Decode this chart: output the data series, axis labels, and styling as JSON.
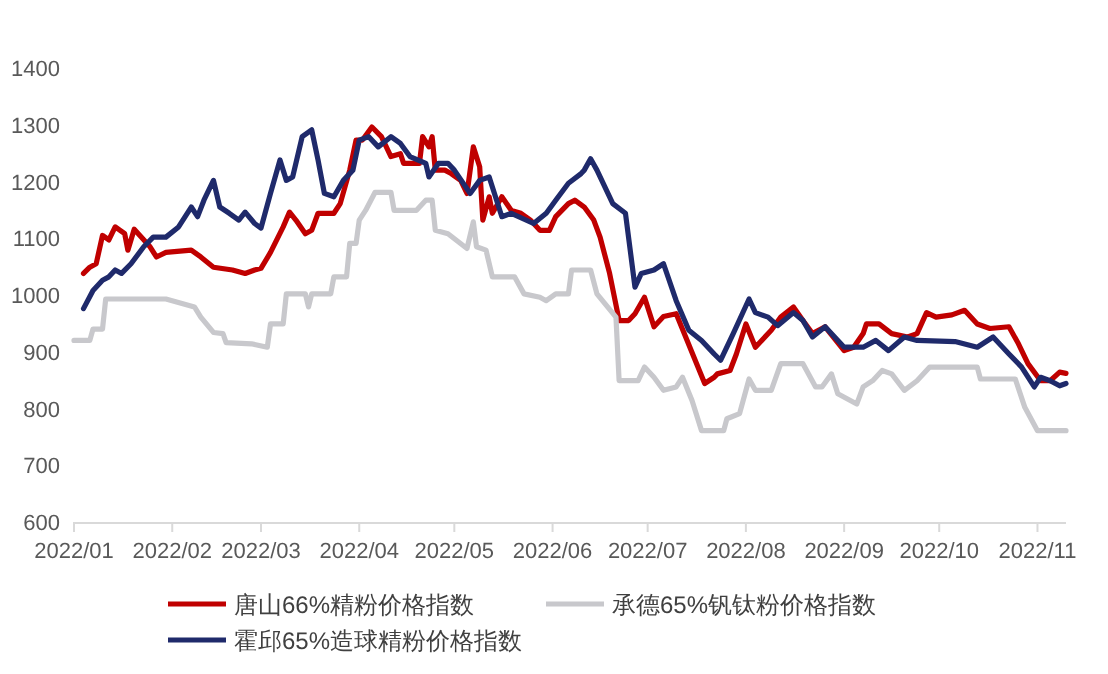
{
  "chart_data": {
    "type": "line",
    "xlim": [
      "2022-01-01",
      "2022-11-10"
    ],
    "xticks": [
      {
        "value": "2022-01-01",
        "label": "2022/01"
      },
      {
        "value": "2022-02-01",
        "label": "2022/02"
      },
      {
        "value": "2022-03-01",
        "label": "2022/03"
      },
      {
        "value": "2022-04-01",
        "label": "2022/04"
      },
      {
        "value": "2022-05-01",
        "label": "2022/05"
      },
      {
        "value": "2022-06-01",
        "label": "2022/06"
      },
      {
        "value": "2022-07-01",
        "label": "2022/07"
      },
      {
        "value": "2022-08-01",
        "label": "2022/08"
      },
      {
        "value": "2022-09-01",
        "label": "2022/09"
      },
      {
        "value": "2022-10-01",
        "label": "2022/10"
      },
      {
        "value": "2022-11-01",
        "label": "2022/11"
      }
    ],
    "ylim": [
      600,
      1400
    ],
    "yticks": [
      600,
      700,
      800,
      900,
      1000,
      1100,
      1200,
      1300,
      1400
    ],
    "grid": false,
    "legend": "bottom",
    "marker": "none",
    "line_style": "solid",
    "series": [
      {
        "name": "唐山66%精粉价格指数",
        "color": "#c00000",
        "x": [
          "2022-01-04",
          "2022-01-06",
          "2022-01-08",
          "2022-01-10",
          "2022-01-12",
          "2022-01-14",
          "2022-01-17",
          "2022-01-18",
          "2022-01-20",
          "2022-01-25",
          "2022-01-27",
          "2022-01-30",
          "2022-02-07",
          "2022-02-10",
          "2022-02-14",
          "2022-02-20",
          "2022-02-24",
          "2022-02-27",
          "2022-03-01",
          "2022-03-04",
          "2022-03-08",
          "2022-03-10",
          "2022-03-12",
          "2022-03-15",
          "2022-03-17",
          "2022-03-19",
          "2022-03-24",
          "2022-03-26",
          "2022-03-29",
          "2022-03-31",
          "2022-04-02",
          "2022-04-05",
          "2022-04-08",
          "2022-04-11",
          "2022-04-14",
          "2022-04-15",
          "2022-04-18",
          "2022-04-20",
          "2022-04-21",
          "2022-04-23",
          "2022-04-24",
          "2022-04-25",
          "2022-04-28",
          "2022-04-30",
          "2022-05-03",
          "2022-05-05",
          "2022-05-07",
          "2022-05-09",
          "2022-05-10",
          "2022-05-12",
          "2022-05-13",
          "2022-05-16",
          "2022-05-19",
          "2022-05-22",
          "2022-05-25",
          "2022-05-28",
          "2022-05-31",
          "2022-06-02",
          "2022-06-06",
          "2022-06-08",
          "2022-06-11",
          "2022-06-14",
          "2022-06-16",
          "2022-06-19",
          "2022-06-22",
          "2022-06-25",
          "2022-06-27",
          "2022-06-30",
          "2022-07-03",
          "2022-07-06",
          "2022-07-10",
          "2022-07-13",
          "2022-07-16",
          "2022-07-19",
          "2022-07-22",
          "2022-07-23",
          "2022-07-27",
          "2022-07-29",
          "2022-08-01",
          "2022-08-04",
          "2022-08-09",
          "2022-08-12",
          "2022-08-16",
          "2022-08-19",
          "2022-08-22",
          "2022-08-26",
          "2022-09-01",
          "2022-09-04",
          "2022-09-07",
          "2022-09-08",
          "2022-09-12",
          "2022-09-16",
          "2022-09-21",
          "2022-09-24",
          "2022-09-27",
          "2022-09-30",
          "2022-10-05",
          "2022-10-09",
          "2022-10-13",
          "2022-10-17",
          "2022-10-23",
          "2022-10-26",
          "2022-10-29",
          "2022-11-02",
          "2022-11-05",
          "2022-11-08",
          "2022-11-10"
        ],
        "values": [
          1038,
          1049,
          1055,
          1105,
          1097,
          1120,
          1108,
          1079,
          1116,
          1085,
          1067,
          1075,
          1079,
          1067,
          1049,
          1044,
          1038,
          1044,
          1047,
          1075,
          1120,
          1146,
          1132,
          1108,
          1114,
          1144,
          1144,
          1161,
          1220,
          1273,
          1273,
          1296,
          1279,
          1244,
          1249,
          1232,
          1232,
          1232,
          1279,
          1261,
          1279,
          1220,
          1220,
          1214,
          1202,
          1179,
          1261,
          1226,
          1132,
          1173,
          1144,
          1173,
          1149,
          1144,
          1132,
          1114,
          1114,
          1138,
          1161,
          1167,
          1155,
          1132,
          1102,
          1038,
          955,
          955,
          967,
          996,
          944,
          962,
          967,
          926,
          885,
          844,
          855,
          861,
          867,
          896,
          949,
          908,
          938,
          961,
          979,
          955,
          932,
          944,
          902,
          908,
          932,
          949,
          949,
          932,
          926,
          932,
          969,
          961,
          965,
          973,
          949,
          941,
          944,
          914,
          879,
          849,
          849,
          864,
          862
        ]
      },
      {
        "name": "承德65%钒钛粉价格指数",
        "color": "#c8c8cc",
        "x": [
          "2022-01-01",
          "2022-01-06",
          "2022-01-07",
          "2022-01-10",
          "2022-01-11",
          "2022-01-30",
          "2022-02-08",
          "2022-02-10",
          "2022-02-14",
          "2022-02-17",
          "2022-02-18",
          "2022-02-26",
          "2022-03-03",
          "2022-03-04",
          "2022-03-08",
          "2022-03-09",
          "2022-03-15",
          "2022-03-16",
          "2022-03-17",
          "2022-03-23",
          "2022-03-24",
          "2022-03-28",
          "2022-03-29",
          "2022-03-31",
          "2022-04-01",
          "2022-04-03",
          "2022-04-06",
          "2022-04-11",
          "2022-04-12",
          "2022-04-19",
          "2022-04-22",
          "2022-04-24",
          "2022-04-25",
          "2022-04-29",
          "2022-05-05",
          "2022-05-07",
          "2022-05-08",
          "2022-05-11",
          "2022-05-13",
          "2022-05-20",
          "2022-05-23",
          "2022-05-28",
          "2022-05-30",
          "2022-06-02",
          "2022-06-06",
          "2022-06-07",
          "2022-06-13",
          "2022-06-15",
          "2022-06-21",
          "2022-06-22",
          "2022-06-28",
          "2022-06-30",
          "2022-07-03",
          "2022-07-06",
          "2022-07-10",
          "2022-07-12",
          "2022-07-15",
          "2022-07-18",
          "2022-07-25",
          "2022-07-26",
          "2022-07-30",
          "2022-08-02",
          "2022-08-04",
          "2022-08-09",
          "2022-08-12",
          "2022-08-19",
          "2022-08-23",
          "2022-08-25",
          "2022-08-28",
          "2022-08-30",
          "2022-09-05",
          "2022-09-07",
          "2022-09-10",
          "2022-09-13",
          "2022-09-16",
          "2022-09-20",
          "2022-09-24",
          "2022-09-28",
          "2022-10-13",
          "2022-10-14",
          "2022-10-25",
          "2022-10-28",
          "2022-11-01",
          "2022-11-10"
        ],
        "values": [
          920,
          920,
          940,
          940,
          993,
          993,
          979,
          961,
          934,
          932,
          916,
          914,
          908,
          949,
          949,
          1002,
          1002,
          979,
          1002,
          1002,
          1032,
          1032,
          1091,
          1091,
          1132,
          1149,
          1181,
          1181,
          1149,
          1149,
          1167,
          1167,
          1114,
          1108,
          1082,
          1129,
          1085,
          1079,
          1032,
          1032,
          1002,
          996,
          990,
          1002,
          1002,
          1044,
          1044,
          1002,
          961,
          849,
          849,
          873,
          855,
          832,
          838,
          855,
          814,
          761,
          761,
          782,
          791,
          852,
          832,
          832,
          879,
          879,
          838,
          838,
          861,
          826,
          808,
          838,
          849,
          867,
          861,
          832,
          849,
          873,
          873,
          852,
          852,
          802,
          761,
          761
        ]
      },
      {
        "name": "霍邱65%造球精粉价格指数",
        "color": "#1f2a6b",
        "x": [
          "2022-01-04",
          "2022-01-07",
          "2022-01-10",
          "2022-01-12",
          "2022-01-14",
          "2022-01-16",
          "2022-01-19",
          "2022-01-23",
          "2022-01-26",
          "2022-01-30",
          "2022-02-03",
          "2022-02-07",
          "2022-02-09",
          "2022-02-11",
          "2022-02-14",
          "2022-02-16",
          "2022-02-19",
          "2022-02-22",
          "2022-02-24",
          "2022-02-27",
          "2022-03-01",
          "2022-03-04",
          "2022-03-07",
          "2022-03-09",
          "2022-03-11",
          "2022-03-14",
          "2022-03-17",
          "2022-03-19",
          "2022-03-21",
          "2022-03-24",
          "2022-03-27",
          "2022-03-30",
          "2022-04-01",
          "2022-04-04",
          "2022-04-07",
          "2022-04-11",
          "2022-04-14",
          "2022-04-17",
          "2022-04-22",
          "2022-04-23",
          "2022-04-26",
          "2022-04-29",
          "2022-05-01",
          "2022-05-06",
          "2022-05-09",
          "2022-05-12",
          "2022-05-16",
          "2022-05-19",
          "2022-05-26",
          "2022-05-30",
          "2022-06-02",
          "2022-06-06",
          "2022-06-10",
          "2022-06-11",
          "2022-06-13",
          "2022-06-15",
          "2022-06-20",
          "2022-06-24",
          "2022-06-27",
          "2022-06-29",
          "2022-07-03",
          "2022-07-06",
          "2022-07-10",
          "2022-07-14",
          "2022-07-18",
          "2022-07-22",
          "2022-07-24",
          "2022-07-28",
          "2022-08-02",
          "2022-08-04",
          "2022-08-08",
          "2022-08-11",
          "2022-08-16",
          "2022-08-19",
          "2022-08-22",
          "2022-08-26",
          "2022-08-29",
          "2022-09-01",
          "2022-09-07",
          "2022-09-11",
          "2022-09-15",
          "2022-09-20",
          "2022-09-24",
          "2022-10-06",
          "2022-10-13",
          "2022-10-18",
          "2022-10-23",
          "2022-10-27",
          "2022-10-31",
          "2022-11-02",
          "2022-11-05",
          "2022-11-08",
          "2022-11-10"
        ],
        "values": [
          976,
          1008,
          1026,
          1032,
          1044,
          1038,
          1055,
          1085,
          1102,
          1102,
          1120,
          1155,
          1138,
          1167,
          1202,
          1155,
          1144,
          1132,
          1146,
          1126,
          1118,
          1179,
          1238,
          1202,
          1208,
          1279,
          1291,
          1238,
          1179,
          1173,
          1202,
          1220,
          1273,
          1279,
          1261,
          1279,
          1267,
          1244,
          1232,
          1208,
          1232,
          1232,
          1220,
          1179,
          1202,
          1208,
          1138,
          1144,
          1126,
          1144,
          1167,
          1197,
          1214,
          1220,
          1240,
          1220,
          1161,
          1144,
          1014,
          1038,
          1044,
          1055,
          990,
          938,
          920,
          896,
          885,
          932,
          993,
          969,
          961,
          946,
          969,
          955,
          926,
          944,
          926,
          908,
          908,
          920,
          902,
          926,
          920,
          918,
          908,
          926,
          896,
          873,
          838,
          855,
          849,
          840,
          844
        ]
      }
    ]
  }
}
